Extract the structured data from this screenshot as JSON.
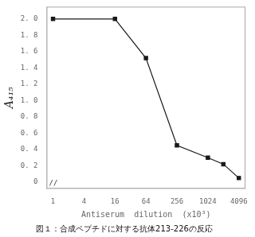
{
  "chart_data": {
    "type": "line",
    "title": "図１：合成ペプチドに対する抗体213-226の反応",
    "xlabel": "Antiserum  dilution  (x10³)",
    "ylabel": "A₄₁₅",
    "annotations": [
      {
        "text": "//"
      }
    ],
    "x": [
      1,
      16,
      64,
      256,
      1024,
      2048,
      4096
    ],
    "values": [
      2.0,
      2.0,
      1.52,
      0.45,
      0.3,
      0.22,
      0.05
    ],
    "color": "#1a1a1a",
    "marker": "square",
    "log": "x",
    "xlim": [
      0.75,
      5500
    ],
    "xticks": [
      1,
      4,
      16,
      64,
      256,
      1024,
      4096
    ],
    "ylim": [
      -0.08,
      2.15
    ],
    "yticks": [
      0,
      {
        "value": 0.2,
        "label": "0. 2"
      },
      {
        "value": 0.4,
        "label": "0. 4"
      },
      {
        "value": 0.6,
        "label": "0. 6"
      },
      {
        "value": 0.8,
        "label": "0. 8"
      },
      {
        "value": 1.0,
        "label": "1. 0"
      },
      {
        "value": 1.2,
        "label": "1. 2"
      },
      {
        "value": 1.4,
        "label": "1. 4"
      },
      {
        "value": 1.6,
        "label": "1. 6"
      },
      {
        "value": 1.8,
        "label": "1. 8"
      },
      {
        "value": 2.0,
        "label": "2. 0"
      }
    ],
    "grid": false
  }
}
